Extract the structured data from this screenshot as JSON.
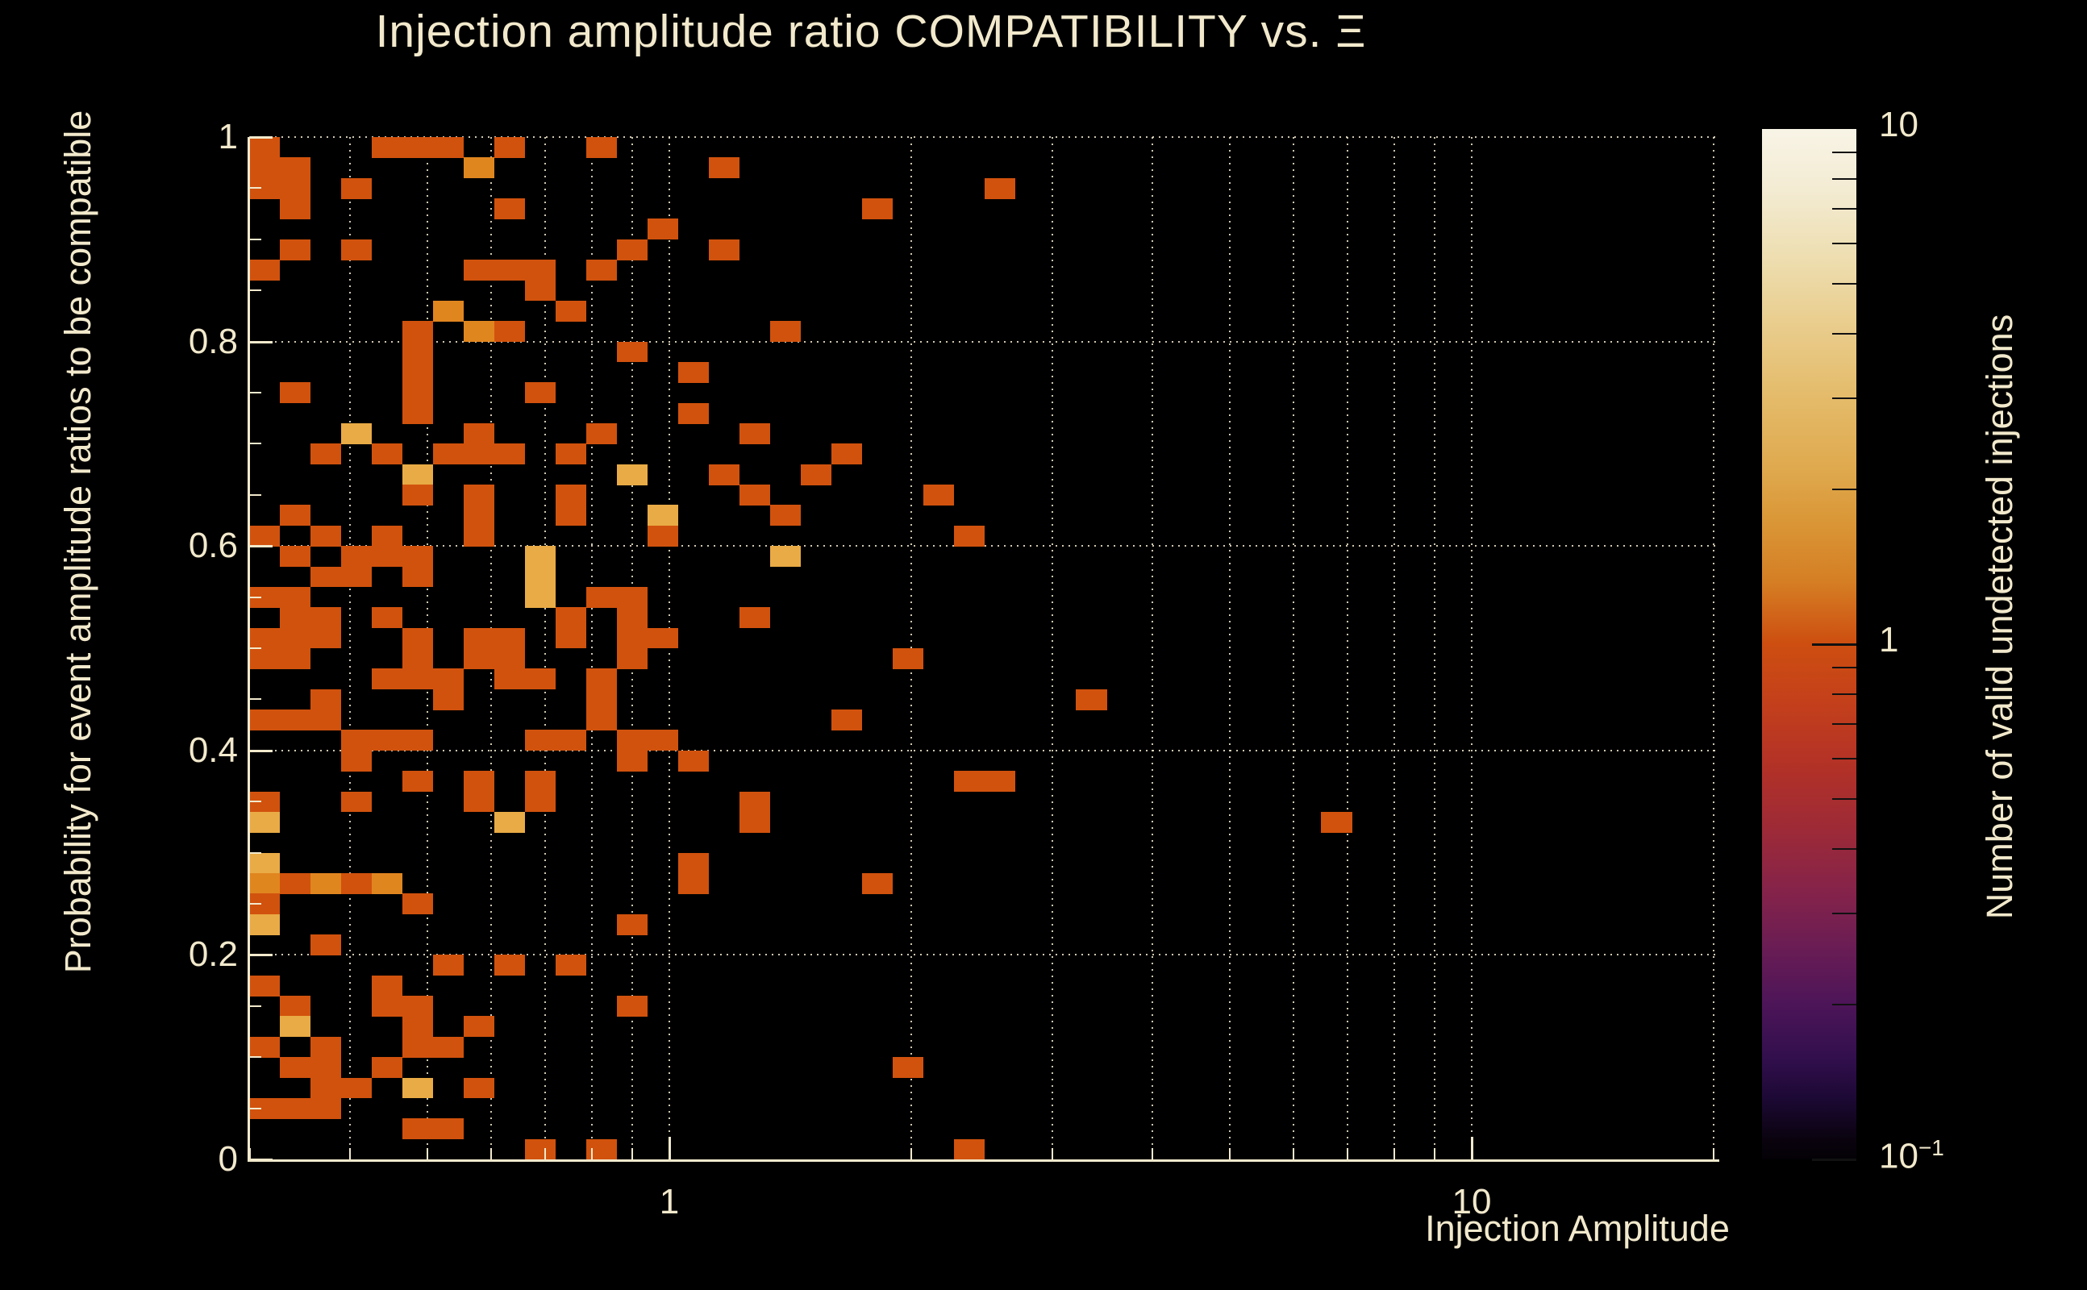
{
  "chart_data": {
    "type": "heatmap",
    "title": "Injection amplitude ratio COMPATIBILITY vs.  Ξ",
    "x_axis": {
      "label": "Injection Amplitude",
      "scale": "log",
      "range": [
        0.3,
        20.5
      ],
      "major_ticks": [
        {
          "v": 1,
          "t": "1"
        },
        {
          "v": 10,
          "t": "10"
        }
      ],
      "minor_ticks": [
        0.3,
        0.4,
        0.5,
        0.6,
        0.7,
        0.8,
        0.9,
        2,
        3,
        4,
        5,
        6,
        7,
        8,
        9,
        20
      ],
      "gridlines": [
        0.4,
        0.5,
        0.6,
        0.7,
        0.8,
        0.9,
        1,
        2,
        3,
        4,
        5,
        6,
        7,
        8,
        9,
        10,
        20
      ],
      "grid": "dotted"
    },
    "y_axis": {
      "label": "Probability for event amplitude ratios to be compatible",
      "scale": "linear",
      "range": [
        0,
        1
      ],
      "major_ticks": [
        {
          "v": 0,
          "t": "0"
        },
        {
          "v": 0.2,
          "t": "0.2"
        },
        {
          "v": 0.4,
          "t": "0.4"
        },
        {
          "v": 0.6,
          "t": "0.6"
        },
        {
          "v": 0.8,
          "t": "0.8"
        },
        {
          "v": 1,
          "t": "1"
        }
      ],
      "minor_tick_step": 0.05,
      "gridlines": [
        0.2,
        0.4,
        0.6,
        0.8,
        1.0
      ],
      "grid": "dotted"
    },
    "colorbar": {
      "label": "Number of valid undetected injections",
      "scale": "log",
      "range": [
        0.1,
        10
      ],
      "tick_labels": [
        {
          "v": 10,
          "t": "10",
          "sup": ""
        },
        {
          "v": 1,
          "t": "1",
          "sup": ""
        },
        {
          "v": 0.1,
          "t": "10",
          "sup": "−1"
        }
      ],
      "minor_ticks": [
        9,
        8,
        7,
        6,
        5,
        4,
        3,
        2,
        0.9,
        0.8,
        0.7,
        0.6,
        0.5,
        0.4,
        0.3,
        0.2
      ],
      "gradient_stops": [
        {
          "p": 0,
          "c": "#f8f4e6"
        },
        {
          "p": 6,
          "c": "#f3ebd2"
        },
        {
          "p": 12,
          "c": "#eedfb3"
        },
        {
          "p": 19,
          "c": "#e9cd8d"
        },
        {
          "p": 26,
          "c": "#e4bb6a"
        },
        {
          "p": 33,
          "c": "#dfa94e"
        },
        {
          "p": 38,
          "c": "#da9737"
        },
        {
          "p": 44,
          "c": "#d57e24"
        },
        {
          "p": 50,
          "c": "#cd4e10"
        },
        {
          "p": 56,
          "c": "#c33f1c"
        },
        {
          "p": 62,
          "c": "#b23127"
        },
        {
          "p": 68,
          "c": "#9d2a37"
        },
        {
          "p": 74,
          "c": "#85234a"
        },
        {
          "p": 80,
          "c": "#671c55"
        },
        {
          "p": 85,
          "c": "#4c1558"
        },
        {
          "p": 90,
          "c": "#330f4e"
        },
        {
          "p": 94,
          "c": "#1d0935"
        },
        {
          "p": 98,
          "c": "#0a030f"
        },
        {
          "p": 100,
          "c": "#040106"
        }
      ]
    },
    "bins": {
      "x_count": 48,
      "y_count": 50,
      "y_bin_width": 0.02
    },
    "value_palette": {
      "1": "#d1520d",
      "2": "#e0861f",
      "3": "#e9ab45"
    },
    "cells": [
      [
        0,
        49,
        1
      ],
      [
        4,
        49,
        1
      ],
      [
        5,
        49,
        1
      ],
      [
        6,
        49,
        1
      ],
      [
        8,
        49,
        1
      ],
      [
        11,
        49,
        1
      ],
      [
        0,
        48,
        1
      ],
      [
        1,
        48,
        1
      ],
      [
        7,
        48,
        2
      ],
      [
        15,
        48,
        1
      ],
      [
        0,
        47,
        1
      ],
      [
        1,
        47,
        1
      ],
      [
        3,
        47,
        1
      ],
      [
        24,
        47,
        1
      ],
      [
        1,
        46,
        1
      ],
      [
        8,
        46,
        1
      ],
      [
        20,
        46,
        1
      ],
      [
        13,
        45,
        1
      ],
      [
        1,
        44,
        1
      ],
      [
        3,
        44,
        1
      ],
      [
        12,
        44,
        1
      ],
      [
        15,
        44,
        1
      ],
      [
        0,
        43,
        1
      ],
      [
        7,
        43,
        1
      ],
      [
        8,
        43,
        1
      ],
      [
        9,
        43,
        1
      ],
      [
        11,
        43,
        1
      ],
      [
        9,
        42,
        1
      ],
      [
        6,
        41,
        2
      ],
      [
        10,
        41,
        1
      ],
      [
        5,
        40,
        1
      ],
      [
        7,
        40,
        2
      ],
      [
        8,
        40,
        1
      ],
      [
        17,
        40,
        1
      ],
      [
        5,
        39,
        1
      ],
      [
        12,
        39,
        1
      ],
      [
        5,
        38,
        1
      ],
      [
        14,
        38,
        1
      ],
      [
        1,
        37,
        1
      ],
      [
        5,
        37,
        1
      ],
      [
        9,
        37,
        1
      ],
      [
        5,
        36,
        1
      ],
      [
        14,
        36,
        1
      ],
      [
        3,
        35,
        3
      ],
      [
        7,
        35,
        1
      ],
      [
        11,
        35,
        1
      ],
      [
        16,
        35,
        1
      ],
      [
        2,
        34,
        1
      ],
      [
        4,
        34,
        1
      ],
      [
        6,
        34,
        1
      ],
      [
        7,
        34,
        1
      ],
      [
        8,
        34,
        1
      ],
      [
        10,
        34,
        1
      ],
      [
        19,
        34,
        1
      ],
      [
        5,
        33,
        3
      ],
      [
        12,
        33,
        3
      ],
      [
        15,
        33,
        1
      ],
      [
        18,
        33,
        1
      ],
      [
        5,
        32,
        1
      ],
      [
        7,
        32,
        1
      ],
      [
        10,
        32,
        1
      ],
      [
        16,
        32,
        1
      ],
      [
        22,
        32,
        1
      ],
      [
        1,
        31,
        1
      ],
      [
        7,
        31,
        1
      ],
      [
        10,
        31,
        1
      ],
      [
        13,
        31,
        3
      ],
      [
        17,
        31,
        1
      ],
      [
        0,
        30,
        1
      ],
      [
        2,
        30,
        1
      ],
      [
        4,
        30,
        1
      ],
      [
        7,
        30,
        1
      ],
      [
        13,
        30,
        1
      ],
      [
        23,
        30,
        1
      ],
      [
        1,
        29,
        1
      ],
      [
        3,
        29,
        1
      ],
      [
        4,
        29,
        1
      ],
      [
        5,
        29,
        1
      ],
      [
        9,
        29,
        3
      ],
      [
        17,
        29,
        3
      ],
      [
        2,
        28,
        1
      ],
      [
        3,
        28,
        1
      ],
      [
        5,
        28,
        1
      ],
      [
        9,
        28,
        3
      ],
      [
        0,
        27,
        1
      ],
      [
        1,
        27,
        1
      ],
      [
        9,
        27,
        3
      ],
      [
        11,
        27,
        1
      ],
      [
        12,
        27,
        1
      ],
      [
        1,
        26,
        1
      ],
      [
        2,
        26,
        1
      ],
      [
        4,
        26,
        1
      ],
      [
        10,
        26,
        1
      ],
      [
        12,
        26,
        1
      ],
      [
        16,
        26,
        1
      ],
      [
        0,
        25,
        1
      ],
      [
        1,
        25,
        1
      ],
      [
        2,
        25,
        1
      ],
      [
        5,
        25,
        1
      ],
      [
        7,
        25,
        1
      ],
      [
        8,
        25,
        1
      ],
      [
        10,
        25,
        1
      ],
      [
        12,
        25,
        1
      ],
      [
        13,
        25,
        1
      ],
      [
        0,
        24,
        1
      ],
      [
        1,
        24,
        1
      ],
      [
        5,
        24,
        1
      ],
      [
        7,
        24,
        1
      ],
      [
        8,
        24,
        1
      ],
      [
        12,
        24,
        1
      ],
      [
        21,
        24,
        1
      ],
      [
        4,
        23,
        1
      ],
      [
        5,
        23,
        1
      ],
      [
        6,
        23,
        1
      ],
      [
        8,
        23,
        1
      ],
      [
        9,
        23,
        1
      ],
      [
        11,
        23,
        1
      ],
      [
        2,
        22,
        1
      ],
      [
        6,
        22,
        1
      ],
      [
        11,
        22,
        1
      ],
      [
        27,
        22,
        1
      ],
      [
        0,
        21,
        1
      ],
      [
        1,
        21,
        1
      ],
      [
        2,
        21,
        1
      ],
      [
        11,
        21,
        1
      ],
      [
        19,
        21,
        1
      ],
      [
        3,
        20,
        1
      ],
      [
        4,
        20,
        1
      ],
      [
        5,
        20,
        1
      ],
      [
        9,
        20,
        1
      ],
      [
        10,
        20,
        1
      ],
      [
        12,
        20,
        1
      ],
      [
        13,
        20,
        1
      ],
      [
        3,
        19,
        1
      ],
      [
        12,
        19,
        1
      ],
      [
        14,
        19,
        1
      ],
      [
        5,
        18,
        1
      ],
      [
        7,
        18,
        1
      ],
      [
        9,
        18,
        1
      ],
      [
        23,
        18,
        1
      ],
      [
        24,
        18,
        1
      ],
      [
        0,
        17,
        1
      ],
      [
        3,
        17,
        1
      ],
      [
        7,
        17,
        1
      ],
      [
        9,
        17,
        1
      ],
      [
        16,
        17,
        1
      ],
      [
        0,
        16,
        3
      ],
      [
        8,
        16,
        3
      ],
      [
        16,
        16,
        1
      ],
      [
        35,
        16,
        1
      ],
      [
        0,
        14,
        3
      ],
      [
        14,
        14,
        1
      ],
      [
        0,
        13,
        2
      ],
      [
        1,
        13,
        1
      ],
      [
        2,
        13,
        2
      ],
      [
        3,
        13,
        1
      ],
      [
        4,
        13,
        2
      ],
      [
        14,
        13,
        1
      ],
      [
        20,
        13,
        1
      ],
      [
        0,
        12,
        1
      ],
      [
        5,
        12,
        1
      ],
      [
        0,
        11,
        3
      ],
      [
        12,
        11,
        1
      ],
      [
        2,
        10,
        1
      ],
      [
        6,
        9,
        1
      ],
      [
        8,
        9,
        1
      ],
      [
        10,
        9,
        1
      ],
      [
        0,
        8,
        1
      ],
      [
        4,
        8,
        1
      ],
      [
        1,
        7,
        1
      ],
      [
        4,
        7,
        1
      ],
      [
        5,
        7,
        1
      ],
      [
        12,
        7,
        1
      ],
      [
        1,
        6,
        3
      ],
      [
        5,
        6,
        1
      ],
      [
        7,
        6,
        1
      ],
      [
        0,
        5,
        1
      ],
      [
        2,
        5,
        1
      ],
      [
        5,
        5,
        1
      ],
      [
        6,
        5,
        1
      ],
      [
        1,
        4,
        1
      ],
      [
        2,
        4,
        1
      ],
      [
        4,
        4,
        1
      ],
      [
        21,
        4,
        1
      ],
      [
        2,
        3,
        1
      ],
      [
        3,
        3,
        1
      ],
      [
        5,
        3,
        3
      ],
      [
        7,
        3,
        1
      ],
      [
        0,
        2,
        1
      ],
      [
        1,
        2,
        1
      ],
      [
        2,
        2,
        1
      ],
      [
        5,
        1,
        1
      ],
      [
        6,
        1,
        1
      ],
      [
        9,
        0,
        1
      ],
      [
        11,
        0,
        1
      ],
      [
        23,
        0,
        1
      ]
    ]
  }
}
